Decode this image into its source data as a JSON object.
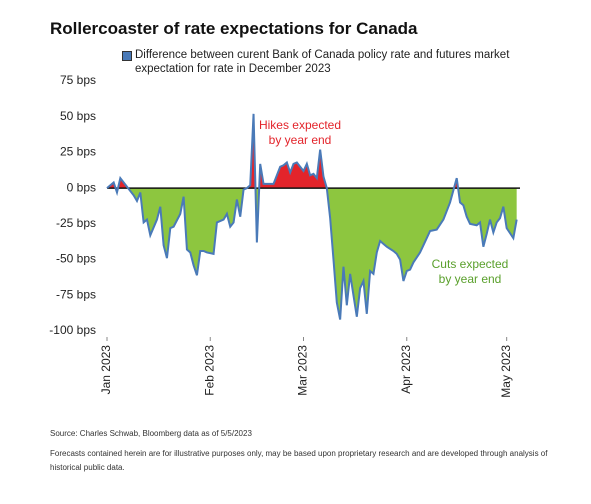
{
  "chart_data": {
    "type": "line",
    "title": "Rollercoaster of rate expectations for Canada",
    "source": "Source: Charles Schwab, Bloomberg data as of 5/5/2023",
    "disclaimer": "Forecasts contained herein are for illustrative purposes only, may be based upon proprietary research and are developed through analysis of historical public data.",
    "annotations": [
      "Hikes expected",
      "by year end",
      "Cuts expected",
      "by year end"
    ],
    "positive_color": "#e3242b",
    "negative_color": "#8dc63f",
    "x": [
      0,
      2,
      3,
      4,
      6,
      8,
      9,
      10,
      11,
      12,
      13,
      15,
      16,
      17,
      18,
      19,
      20,
      22,
      23,
      24,
      25,
      26,
      27,
      28,
      29,
      30,
      32,
      33,
      35,
      36,
      37,
      38,
      39,
      40,
      41,
      42,
      43,
      44,
      45,
      46,
      47,
      48,
      50,
      52,
      53,
      54,
      55,
      56,
      57,
      58,
      59,
      60,
      61,
      62,
      63,
      64,
      65,
      66,
      67,
      68,
      69,
      70,
      71,
      72,
      73,
      74,
      75,
      76,
      77,
      78,
      79,
      80,
      81,
      82,
      84,
      86,
      87,
      88,
      89,
      90,
      91,
      92,
      94,
      95,
      97,
      99,
      101,
      103,
      105,
      106,
      107,
      108,
      109,
      111,
      112,
      113,
      114,
      115,
      116,
      117,
      118,
      119,
      120,
      122,
      123
    ],
    "series": [
      {
        "name": "Difference between curent Bank of Canada policy rate and futures market expectation for rate in December 2023",
        "color": "#4a7ab8",
        "values": [
          0,
          4,
          -3,
          7,
          1,
          -5,
          -9,
          -3,
          -24,
          -22,
          -33,
          -22,
          -13,
          -40,
          -49,
          -28,
          -27,
          -18,
          -6,
          -43,
          -45,
          -54,
          -61,
          -44,
          -44,
          -45,
          -46,
          -24,
          -22,
          -18,
          -27,
          -24,
          -8,
          -20,
          -1,
          0,
          2,
          52,
          -38,
          17,
          3,
          3,
          3,
          15,
          16,
          18,
          11,
          17,
          18,
          15,
          12,
          17,
          9,
          10,
          7,
          27,
          8,
          0,
          -21,
          -50,
          -80,
          -92,
          -55,
          -82,
          -60,
          -75,
          -90,
          -70,
          -65,
          -88,
          -58,
          -60,
          -45,
          -37,
          -41,
          -44,
          -46,
          -50,
          -65,
          -58,
          -57,
          -52,
          -45,
          -40,
          -30,
          -29,
          -22,
          -10,
          7,
          -10,
          -12,
          -20,
          -25,
          -26,
          -24,
          -41,
          -32,
          -22,
          -31,
          -24,
          -21,
          -13,
          -28,
          -35,
          -22
        ]
      }
    ],
    "xlim": [
      0,
      124
    ],
    "xticks": [
      {
        "value": 0,
        "label": "Jan 2023"
      },
      {
        "value": 31,
        "label": "Feb 2023"
      },
      {
        "value": 59,
        "label": "Mar 2023"
      },
      {
        "value": 90,
        "label": "Apr 2023"
      },
      {
        "value": 120,
        "label": "May 2023"
      }
    ],
    "ylim": [
      -100,
      75
    ],
    "yticks": [
      {
        "value": 75,
        "label": "75 bps"
      },
      {
        "value": 50,
        "label": "50 bps"
      },
      {
        "value": 25,
        "label": "25 bps"
      },
      {
        "value": 0,
        "label": "0 bps"
      },
      {
        "value": -25,
        "label": "-25 bps"
      },
      {
        "value": -50,
        "label": "-50 bps"
      },
      {
        "value": -75,
        "label": "-75 bps"
      },
      {
        "value": -100,
        "label": "-100 bps"
      }
    ],
    "grid": false
  }
}
